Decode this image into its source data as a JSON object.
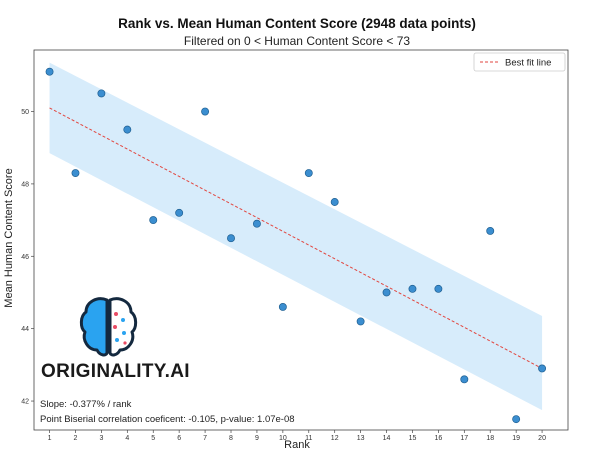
{
  "chart_data": {
    "type": "scatter",
    "title": "Rank vs. Mean Human Content Score (2948 data points)",
    "subtitle": "Filtered on 0 < Human Content Score < 73",
    "xlabel": "Rank",
    "ylabel": "Mean Human Content Score",
    "xlim": [
      0.4,
      21.0
    ],
    "ylim": [
      41.2,
      51.7
    ],
    "xticks": [
      1,
      2,
      3,
      4,
      5,
      6,
      7,
      8,
      9,
      10,
      11,
      12,
      13,
      14,
      15,
      16,
      17,
      18,
      19,
      20
    ],
    "yticks": [
      42,
      44,
      46,
      48,
      50
    ],
    "grid": false,
    "legend_position": "top-right",
    "series": [
      {
        "type": "scatter",
        "x": [
          1,
          2,
          3,
          4,
          5,
          6,
          7,
          8,
          9,
          10,
          11,
          12,
          13,
          14,
          15,
          16,
          17,
          18,
          19,
          20
        ],
        "y": [
          51.1,
          48.3,
          50.5,
          49.5,
          47.0,
          47.2,
          50.0,
          46.5,
          46.9,
          44.6,
          48.3,
          47.5,
          44.2,
          45.0,
          45.1,
          45.1,
          42.6,
          46.7,
          41.5,
          42.9
        ]
      },
      {
        "name": "Best fit line",
        "type": "line",
        "style": "dashed",
        "x": [
          1,
          20
        ],
        "y": [
          50.1,
          42.9
        ]
      }
    ],
    "confidence_band": {
      "x": [
        1,
        20
      ],
      "upper": [
        51.35,
        44.35
      ],
      "lower": [
        48.85,
        41.75
      ]
    },
    "annotations": [
      "Slope: -0.377% /  rank",
      "Point Biserial correlation coeficent: -0.105, p-value: 1.07e-08"
    ]
  },
  "logo": {
    "text": "ORIGINALITY.AI",
    "icon": "brain-icon"
  },
  "colors": {
    "points": "#3b8ed0",
    "point_edge": "#1f5f91",
    "line": "#e2463f",
    "band": "#d7ecfb",
    "logo_blue": "#2aa3f0",
    "logo_dark": "#14293f"
  }
}
